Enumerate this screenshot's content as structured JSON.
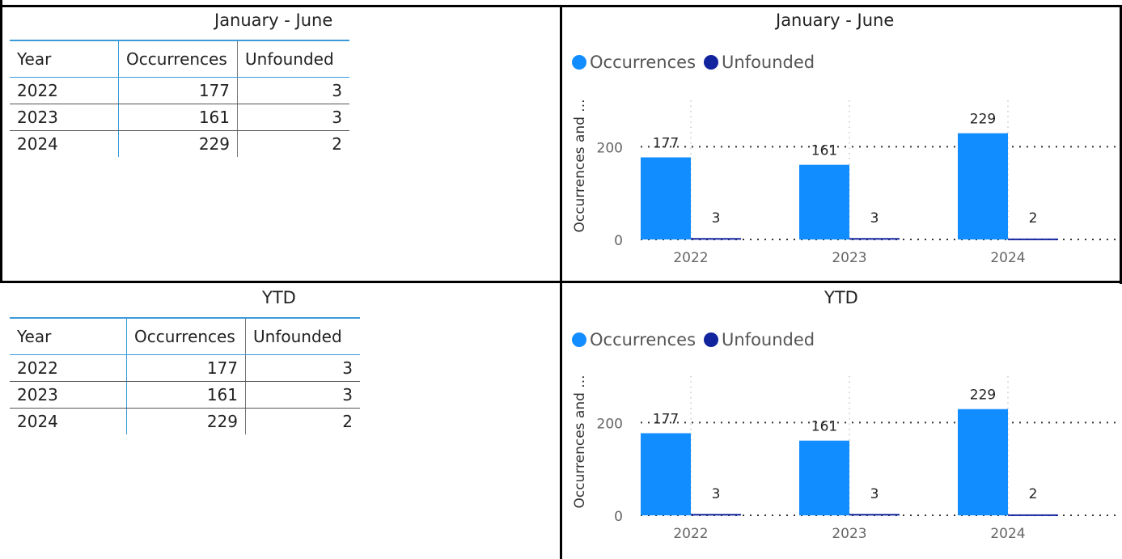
{
  "colors": {
    "occurrences": "#118dff",
    "unfounded": "#12239e",
    "table_accent": "#3a9bd9"
  },
  "sections": [
    {
      "table": {
        "title": "January - June",
        "headers": [
          "Year",
          "Occurrences",
          "Unfounded"
        ],
        "rows": [
          [
            "2022",
            "177",
            "3"
          ],
          [
            "2023",
            "161",
            "3"
          ],
          [
            "2024",
            "229",
            "2"
          ]
        ]
      },
      "chart_data": {
        "type": "bar",
        "title": "January - June",
        "categories": [
          "2022",
          "2023",
          "2024"
        ],
        "series": [
          {
            "name": "Occurrences",
            "values": [
              177,
              161,
              229
            ]
          },
          {
            "name": "Unfounded",
            "values": [
              3,
              3,
              2
            ]
          }
        ],
        "ylabel": "Occurrences and ...",
        "xlabel": "",
        "yticks": [
          "0",
          "200"
        ],
        "ylim": [
          0,
          300
        ],
        "legend": "top-left",
        "grid": true
      }
    },
    {
      "table": {
        "title": "YTD",
        "headers": [
          "Year",
          "Occurrences",
          "Unfounded"
        ],
        "rows": [
          [
            "2022",
            "177",
            "3"
          ],
          [
            "2023",
            "161",
            "3"
          ],
          [
            "2024",
            "229",
            "2"
          ]
        ]
      },
      "chart_data": {
        "type": "bar",
        "title": "YTD",
        "categories": [
          "2022",
          "2023",
          "2024"
        ],
        "series": [
          {
            "name": "Occurrences",
            "values": [
              177,
              161,
              229
            ]
          },
          {
            "name": "Unfounded",
            "values": [
              3,
              3,
              2
            ]
          }
        ],
        "ylabel": "Occurrences and ...",
        "xlabel": "",
        "yticks": [
          "0",
          "200"
        ],
        "ylim": [
          0,
          300
        ],
        "legend": "top-left",
        "grid": true
      }
    }
  ]
}
